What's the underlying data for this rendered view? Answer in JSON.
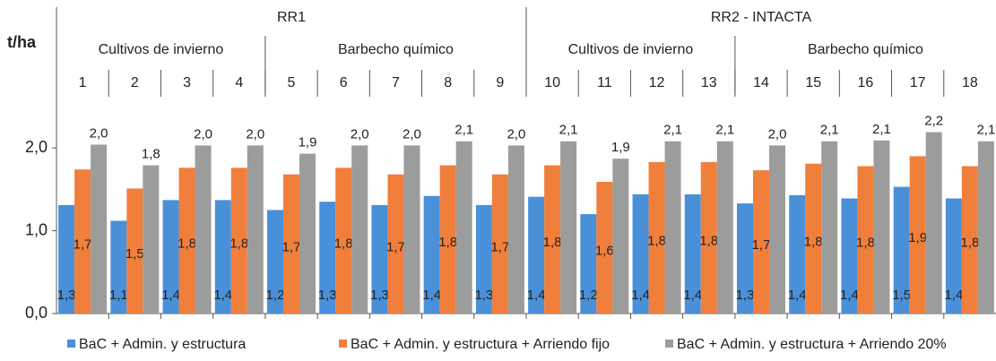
{
  "chart_data": {
    "type": "bar",
    "ylabel": "t/ha",
    "categories": [
      "1",
      "2",
      "3",
      "4",
      "5",
      "6",
      "7",
      "8",
      "9",
      "10",
      "11",
      "12",
      "13",
      "14",
      "15",
      "16",
      "17",
      "18"
    ],
    "groups": [
      {
        "label": "RR1",
        "count": 9
      },
      {
        "label": "RR2 - INTACTA",
        "count": 9
      }
    ],
    "subgroups": [
      {
        "label": "Cultivos de invierno",
        "count": 4
      },
      {
        "label": "Barbecho químico",
        "count": 5
      },
      {
        "label": "Cultivos de invierno",
        "count": 4
      },
      {
        "label": "Barbecho químico",
        "count": 5
      }
    ],
    "series": [
      {
        "name": "BaC + Admin. y estructura",
        "color": "#4a90d9",
        "values": [
          1.31,
          1.12,
          1.37,
          1.37,
          1.25,
          1.35,
          1.31,
          1.42,
          1.31,
          1.41,
          1.2,
          1.44,
          1.44,
          1.33,
          1.43,
          1.39,
          1.53,
          1.39
        ],
        "value_labels": [
          "1,3",
          "1,1",
          "1,4",
          "1,4",
          "1,2",
          "1,3",
          "1,3",
          "1,4",
          "1,3",
          "1,4",
          "1,2",
          "1,4",
          "1,4",
          "1,3",
          "1,4",
          "1,4",
          "1,5",
          "1,4"
        ]
      },
      {
        "name": "BaC + Admin. y estructura + Arriendo fijo",
        "color": "#f07f3c",
        "values": [
          1.74,
          1.51,
          1.76,
          1.76,
          1.68,
          1.76,
          1.68,
          1.79,
          1.68,
          1.79,
          1.59,
          1.83,
          1.83,
          1.73,
          1.81,
          1.78,
          1.9,
          1.78
        ],
        "value_labels": [
          "1,7",
          "1,5",
          "1,8",
          "1,8",
          "1,7",
          "1,8",
          "1,7",
          "1,8",
          "1,7",
          "1,8",
          "1,6",
          "1,8",
          "1,8",
          "1,7",
          "1,8",
          "1,8",
          "1,9",
          "1,8"
        ]
      },
      {
        "name": "BaC + Admin. y estructura + Arriendo 20%",
        "color": "#9c9c9c",
        "values": [
          2.04,
          1.79,
          2.03,
          2.03,
          1.93,
          2.03,
          2.03,
          2.08,
          2.03,
          2.08,
          1.87,
          2.08,
          2.08,
          2.03,
          2.08,
          2.09,
          2.19,
          2.08
        ],
        "value_labels": [
          "2,0",
          "1,8",
          "2,0",
          "2,0",
          "1,9",
          "2,0",
          "2,0",
          "2,1",
          "2,0",
          "2,1",
          "1,9",
          "2,1",
          "2,1",
          "2,0",
          "2,1",
          "2,1",
          "2,2",
          "2,1"
        ]
      }
    ],
    "ylim": [
      0,
      3.7
    ],
    "yticks": [
      {
        "value": 0,
        "label": "0,0"
      },
      {
        "value": 1,
        "label": "1,0"
      },
      {
        "value": 2,
        "label": "2,0"
      }
    ],
    "legend": "bottom"
  }
}
